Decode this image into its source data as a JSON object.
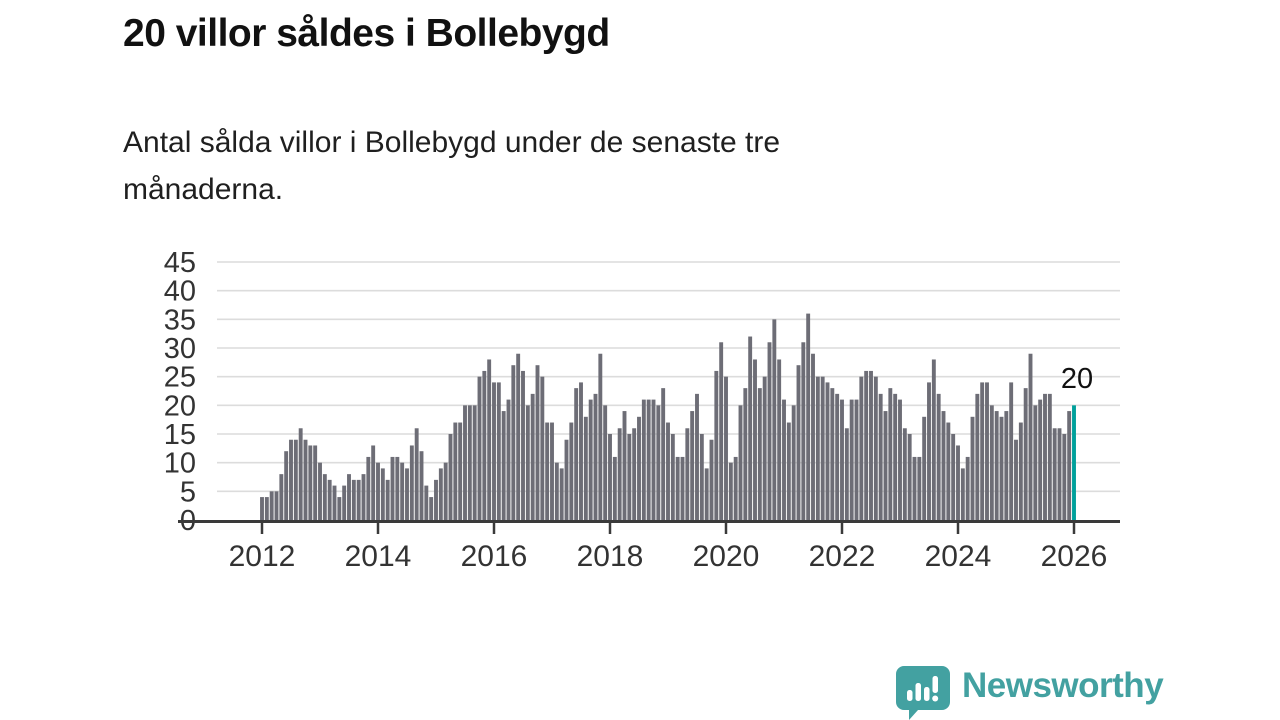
{
  "header": {
    "title": "20 villor såldes i Bollebygd",
    "subtitle_line1": "Antal sålda villor i Bollebygd under de senaste tre",
    "subtitle_line2": "månaderna."
  },
  "annotation": {
    "label": "20"
  },
  "footer": {
    "brand": "Newsworthy"
  },
  "chart_data": {
    "type": "bar",
    "title": "20 villor såldes i Bollebygd",
    "subtitle": "Antal sålda villor i Bollebygd under de senaste tre månaderna.",
    "xlabel": "",
    "ylabel": "",
    "x_period_start": "2012",
    "x_period_end": "2026",
    "x_frequency": "monthly",
    "xticks": [
      "2012",
      "2014",
      "2016",
      "2018",
      "2020",
      "2022",
      "2024",
      "2026"
    ],
    "yticks": [
      0,
      5,
      10,
      15,
      20,
      25,
      30,
      35,
      40,
      45
    ],
    "ylim": [
      0,
      45
    ],
    "grid": true,
    "legend": "none",
    "bar_color": "#6d6d76",
    "highlight_color": "#00a09b",
    "highlight_last_bar": true,
    "last_value_label": "20",
    "values": [
      4,
      4,
      5,
      5,
      8,
      12,
      14,
      14,
      16,
      14,
      13,
      13,
      10,
      8,
      7,
      6,
      4,
      6,
      8,
      7,
      7,
      8,
      11,
      13,
      10,
      9,
      7,
      11,
      11,
      10,
      9,
      13,
      16,
      12,
      6,
      4,
      7,
      9,
      10,
      15,
      17,
      17,
      20,
      20,
      20,
      25,
      26,
      28,
      24,
      24,
      19,
      21,
      27,
      29,
      26,
      20,
      22,
      27,
      25,
      17,
      17,
      10,
      9,
      14,
      17,
      23,
      24,
      18,
      21,
      22,
      29,
      20,
      15,
      11,
      16,
      19,
      15,
      16,
      18,
      21,
      21,
      21,
      20,
      23,
      17,
      15,
      11,
      11,
      16,
      19,
      22,
      15,
      9,
      14,
      26,
      31,
      25,
      10,
      11,
      20,
      23,
      32,
      28,
      23,
      25,
      31,
      35,
      28,
      21,
      17,
      20,
      27,
      31,
      36,
      29,
      25,
      25,
      24,
      23,
      22,
      21,
      16,
      21,
      21,
      25,
      26,
      26,
      25,
      22,
      19,
      23,
      22,
      21,
      16,
      15,
      11,
      11,
      18,
      24,
      28,
      22,
      19,
      17,
      15,
      13,
      9,
      11,
      18,
      22,
      24,
      24,
      20,
      19,
      18,
      19,
      24,
      14,
      17,
      23,
      29,
      20,
      21,
      22,
      22,
      16,
      16,
      15,
      19,
      20
    ]
  }
}
